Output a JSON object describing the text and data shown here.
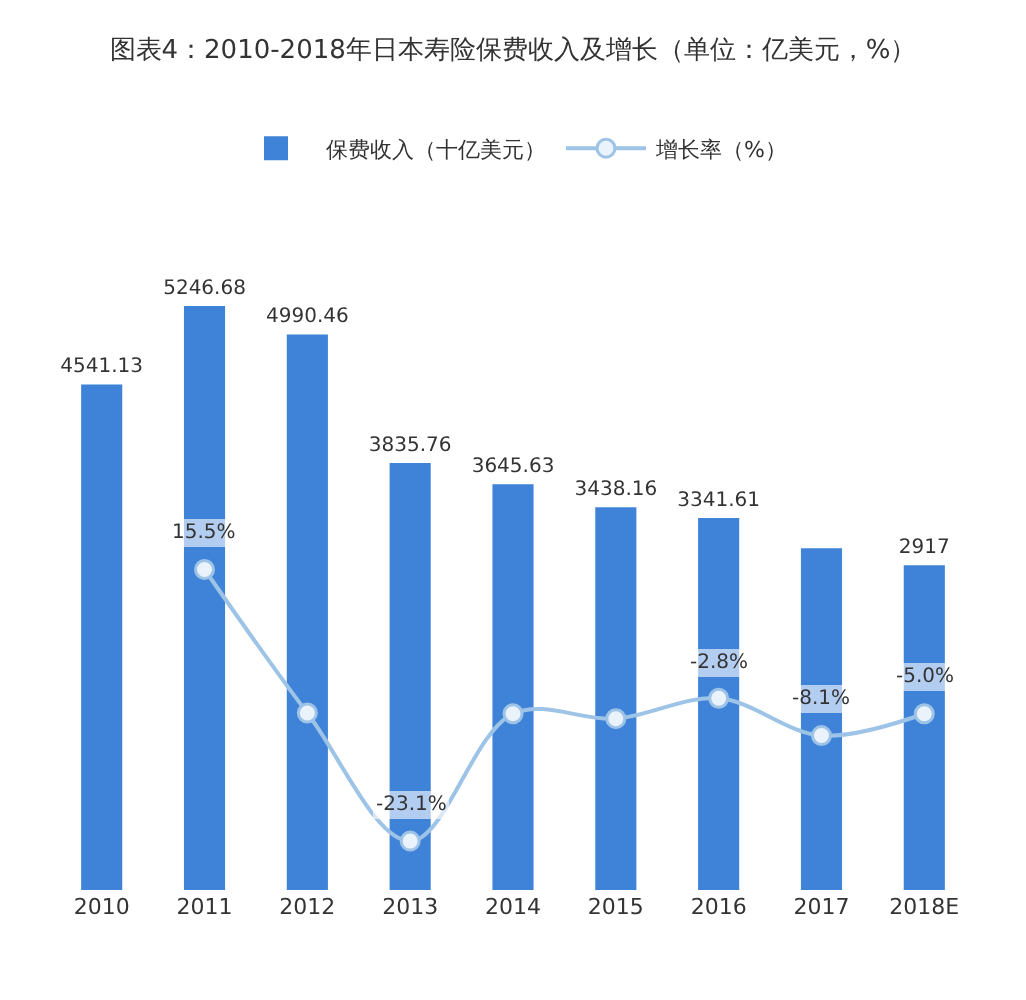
{
  "chart_data": {
    "type": "bar",
    "title": "图表4：2010-2018年日本寿险保费收入及增长（单位：亿美元，%）",
    "categories": [
      "2010",
      "2011",
      "2012",
      "2013",
      "2014",
      "2015",
      "2016",
      "2017",
      "2018E"
    ],
    "legend": "top",
    "series": [
      {
        "name": "保费收入（十亿美元）",
        "color": "#3f83d8",
        "values": [
          4541.13,
          5246.68,
          4990.46,
          3835.76,
          3645.63,
          3438.16,
          3341.61,
          3071,
          2917
        ],
        "value_labels": [
          "4541.13",
          "5246.68",
          "4990.46",
          "3835.76",
          "3645.63",
          "3438.16",
          "3341.61",
          null,
          "2917"
        ]
      },
      {
        "name": "增长率（%）",
        "type": "line",
        "axis": "y2",
        "color": "#9dc3e6",
        "marker": "circle",
        "values": [
          null,
          15.5,
          -4.9,
          -23.1,
          -5.0,
          -5.7,
          -2.8,
          -8.1,
          -5.0
        ],
        "value_labels": [
          null,
          "15.5%",
          null,
          "-23.1%",
          null,
          null,
          "-2.8%",
          "-8.1%",
          "-5.0%"
        ]
      }
    ]
  }
}
